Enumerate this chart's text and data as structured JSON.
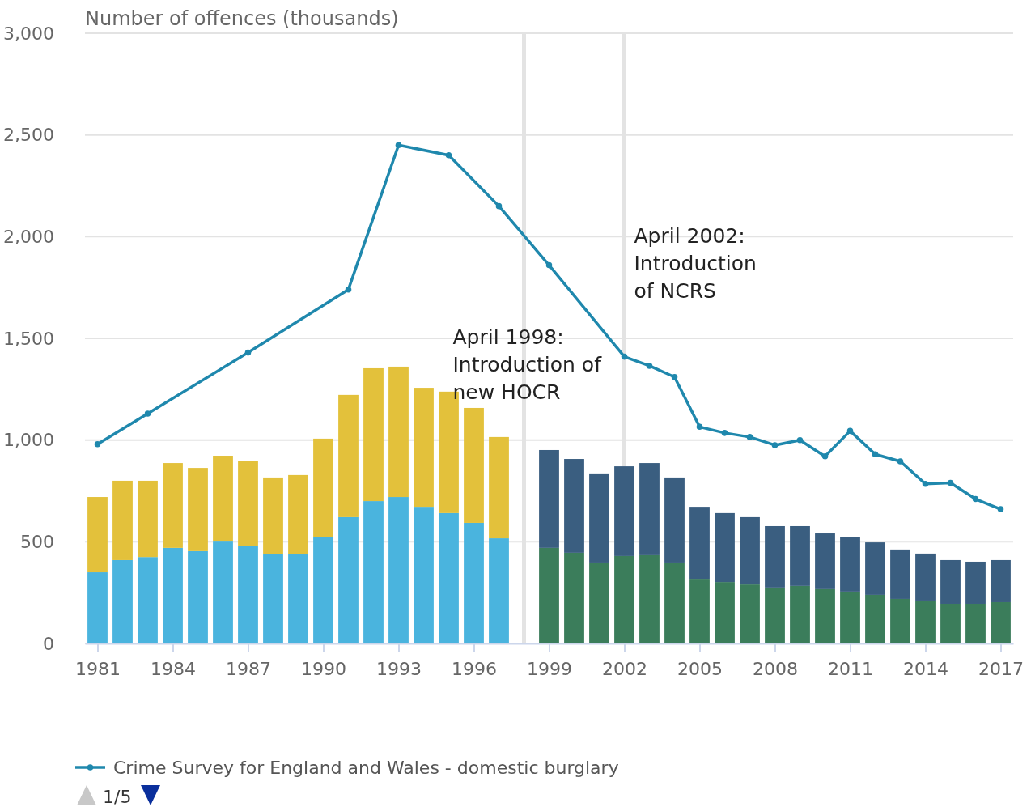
{
  "chart_data": {
    "type": "bar",
    "stacked": true,
    "ylabel": "Number of offences (thousands)",
    "x": [
      1981,
      1982,
      1983,
      1984,
      1985,
      1986,
      1987,
      1988,
      1989,
      1990,
      1991,
      1992,
      1993,
      1994,
      1995,
      1996,
      1997,
      1999,
      2000,
      2001,
      2002,
      2003,
      2004,
      2005,
      2006,
      2007,
      2008,
      2009,
      2010,
      2011,
      2012,
      2013,
      2014,
      2015,
      2016,
      2017
    ],
    "xlim": [
      1980.5,
      2017.5
    ],
    "xticks": [
      1981,
      1984,
      1987,
      1990,
      1993,
      1996,
      1999,
      2002,
      2005,
      2008,
      2011,
      2014,
      2017
    ],
    "ylim": [
      0,
      3000
    ],
    "yticks": [
      {
        "value": 0,
        "label": "0"
      },
      {
        "value": 500,
        "label": "500"
      },
      {
        "value": 1000,
        "label": "1,000"
      },
      {
        "value": 1500,
        "label": "1,500"
      },
      {
        "value": 2000,
        "label": "2,000"
      },
      {
        "value": 2500,
        "label": "2,500"
      },
      {
        "value": 3000,
        "label": "3,000"
      }
    ],
    "grid": "y",
    "legend": "bottom",
    "series": [
      {
        "color": "#4ab4de",
        "values": [
          350,
          410,
          425,
          470,
          454,
          505,
          478,
          438,
          438,
          525,
          621,
          700,
          720,
          672,
          641,
          593,
          517,
          null,
          null,
          null,
          null,
          null,
          null,
          null,
          null,
          null,
          null,
          null,
          null,
          null,
          null,
          null,
          null,
          null,
          null,
          null
        ]
      },
      {
        "color": "#e3c13b",
        "values": [
          370,
          390,
          375,
          417,
          409,
          418,
          421,
          378,
          390,
          482,
          601,
          653,
          641,
          585,
          597,
          565,
          498,
          null,
          null,
          null,
          null,
          null,
          null,
          null,
          null,
          null,
          null,
          null,
          null,
          null,
          null,
          null,
          null,
          null,
          null,
          null
        ]
      },
      {
        "color": "#3b7d5b",
        "values": [
          null,
          null,
          null,
          null,
          null,
          null,
          null,
          null,
          null,
          null,
          null,
          null,
          null,
          null,
          null,
          null,
          null,
          470,
          446,
          398,
          430,
          434,
          398,
          318,
          302,
          290,
          275,
          283,
          267,
          255,
          239,
          219,
          211,
          195,
          195,
          203
        ]
      },
      {
        "color": "#3a5e80",
        "values": [
          null,
          null,
          null,
          null,
          null,
          null,
          null,
          null,
          null,
          null,
          null,
          null,
          null,
          null,
          null,
          null,
          null,
          481,
          461,
          438,
          441,
          453,
          418,
          354,
          339,
          331,
          302,
          294,
          274,
          270,
          258,
          243,
          231,
          215,
          207,
          207
        ]
      },
      {
        "name": "Crime Survey for England and Wales - domestic burglary",
        "type": "line",
        "color": "#1f88ad",
        "marker": "circle",
        "line_style": "solid",
        "x": [
          1981,
          1983,
          1987,
          1991,
          1993,
          1995,
          1997,
          1999,
          2002,
          2003,
          2004,
          2005,
          2006,
          2007,
          2008,
          2009,
          2010,
          2011,
          2012,
          2013,
          2014,
          2015,
          2016,
          2017
        ],
        "values": [
          980,
          1130,
          1430,
          1740,
          2450,
          2400,
          2150,
          1860,
          1410,
          1365,
          1310,
          1065,
          1035,
          1015,
          975,
          1000,
          920,
          1045,
          930,
          895,
          785,
          790,
          710,
          660
        ]
      }
    ],
    "ref_lines": [
      {
        "axis": "x",
        "value": 1998,
        "label": "April 1998: Introduction of new HOCR",
        "color": "#e3e3e3"
      },
      {
        "axis": "x",
        "value": 2002,
        "label": "April 2002: Introduction of NCRS",
        "color": "#e3e3e3"
      }
    ],
    "annotations": [
      "1/5"
    ]
  }
}
